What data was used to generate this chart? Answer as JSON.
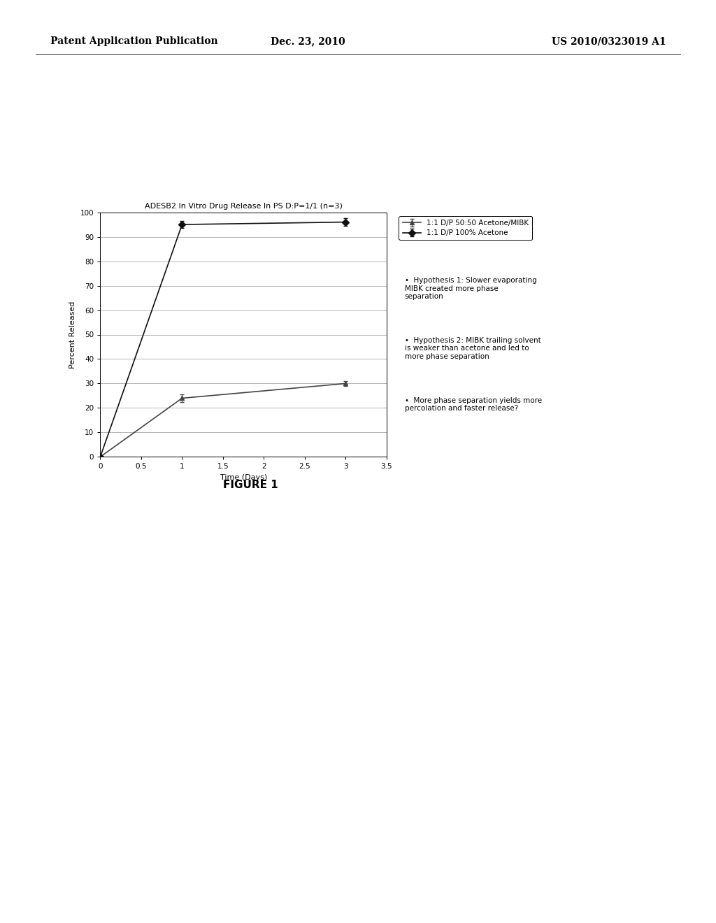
{
  "title": "ADESB2 In Vitro Drug Release In PS D:P=1/1 (n=3)",
  "xlabel": "Time (Days)",
  "ylabel": "Percent Released",
  "xlim": [
    0,
    3.5
  ],
  "ylim": [
    0,
    100
  ],
  "xticks": [
    0,
    0.5,
    1,
    1.5,
    2,
    2.5,
    3,
    3.5
  ],
  "yticks": [
    0,
    10,
    20,
    30,
    40,
    50,
    60,
    70,
    80,
    90,
    100
  ],
  "series": [
    {
      "label": "1:1 D/P 50:50 Acetone/MIBK",
      "x": [
        0,
        1,
        3
      ],
      "y": [
        0,
        24,
        30
      ],
      "yerr": [
        0,
        1.5,
        1.0
      ],
      "color": "#444444",
      "marker": "^",
      "linestyle": "-",
      "linewidth": 1.2,
      "markersize": 5
    },
    {
      "label": "1:1 D/P 100% Acetone",
      "x": [
        0,
        1,
        3
      ],
      "y": [
        0,
        95,
        96
      ],
      "yerr": [
        0,
        1.5,
        1.5
      ],
      "color": "#111111",
      "marker": "D",
      "linestyle": "-",
      "linewidth": 1.2,
      "markersize": 5
    }
  ],
  "annotations": [
    "Hypothesis 1: Slower evaporating\nMIBK created more phase\nseparation",
    "Hypothesis 2: MIBK trailing solvent\nis weaker than acetone and led to\nmore phase separation",
    "More phase separation yields more\npercolation and faster release?"
  ],
  "header_left": "Patent Application Publication",
  "header_center": "Dec. 23, 2010",
  "header_right": "US 2010/0323019 A1",
  "figure_label": "FIGURE 1",
  "background_color": "#ffffff",
  "plot_bg_color": "#ffffff",
  "grid_color": "#999999",
  "title_fontsize": 8,
  "axis_label_fontsize": 8,
  "tick_fontsize": 7.5,
  "legend_fontsize": 7.5,
  "annotation_fontsize": 7.5,
  "header_fontsize": 10,
  "figure_label_fontsize": 11
}
